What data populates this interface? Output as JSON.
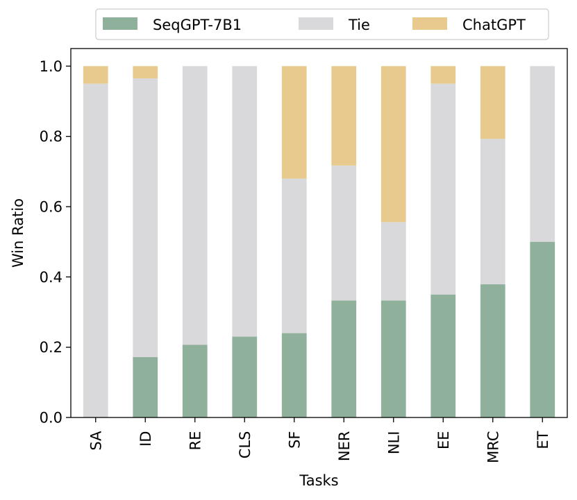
{
  "chart_data": {
    "type": "bar",
    "stacked": true,
    "xlabel": "Tasks",
    "ylabel": "Win Ratio",
    "ylim": [
      0,
      1.05
    ],
    "yticks": [
      "0.0",
      "0.2",
      "0.4",
      "0.6",
      "0.8",
      "1.0"
    ],
    "grid": false,
    "legend_position": "top",
    "categories": [
      "SA",
      "ID",
      "RE",
      "CLS",
      "SF",
      "NER",
      "NLI",
      "EE",
      "MRC",
      "ET"
    ],
    "series": [
      {
        "name": "SeqGPT-7B1",
        "color": "#8fb09a",
        "values": [
          0.0,
          0.172,
          0.207,
          0.23,
          0.24,
          0.333,
          0.333,
          0.35,
          0.379,
          0.5
        ]
      },
      {
        "name": "Tie",
        "color": "#d9d9db",
        "values": [
          0.95,
          0.793,
          0.793,
          0.77,
          0.44,
          0.384,
          0.223,
          0.6,
          0.414,
          0.5
        ]
      },
      {
        "name": "ChatGPT",
        "color": "#e8ca8e",
        "values": [
          0.05,
          0.035,
          0.0,
          0.0,
          0.32,
          0.283,
          0.444,
          0.05,
          0.207,
          0.0
        ]
      }
    ]
  }
}
